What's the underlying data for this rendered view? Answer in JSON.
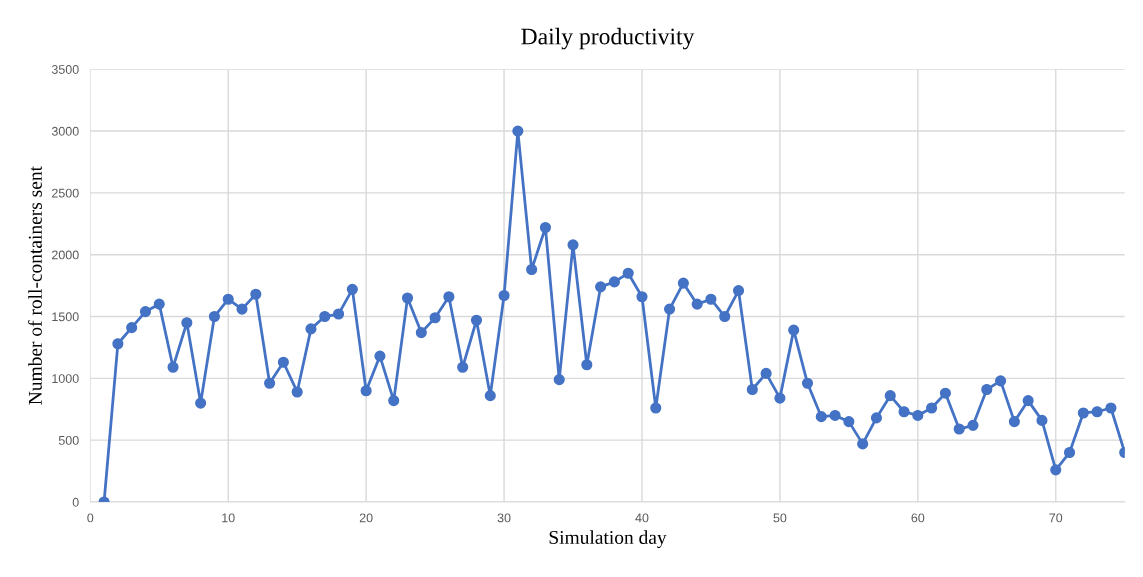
{
  "chart_data": {
    "type": "line",
    "title": "Daily productivity",
    "xlabel": "Simulation day",
    "ylabel": "Number of roll-containers sent",
    "x": [
      1,
      2,
      3,
      4,
      5,
      6,
      7,
      8,
      9,
      10,
      11,
      12,
      13,
      14,
      15,
      16,
      17,
      18,
      19,
      20,
      21,
      22,
      23,
      24,
      25,
      26,
      27,
      28,
      29,
      30,
      31,
      32,
      33,
      34,
      35,
      36,
      37,
      38,
      39,
      40,
      41,
      42,
      43,
      44,
      45,
      46,
      47,
      48,
      49,
      50,
      51,
      52,
      53,
      54,
      55,
      56,
      57,
      58,
      59,
      60,
      61,
      62,
      63,
      64,
      65,
      66,
      67,
      68,
      69,
      70,
      71,
      72,
      73,
      74,
      75
    ],
    "series": [
      {
        "color": "#4472c4",
        "values": [
          0,
          1280,
          1410,
          1540,
          1600,
          1090,
          1450,
          800,
          1500,
          1640,
          1560,
          1680,
          960,
          1130,
          890,
          1400,
          1500,
          1520,
          1720,
          900,
          1180,
          820,
          1650,
          1370,
          1490,
          1660,
          1090,
          1470,
          860,
          1670,
          3000,
          1880,
          2220,
          990,
          2080,
          1110,
          1740,
          1780,
          1850,
          1660,
          760,
          1560,
          1770,
          1600,
          1640,
          1500,
          1710,
          910,
          1040,
          840,
          1390,
          960,
          690,
          700,
          650,
          470,
          680,
          860,
          730,
          700,
          760,
          880,
          590,
          620,
          910,
          980,
          650,
          820,
          660,
          260,
          400,
          720,
          730,
          760,
          400
        ]
      }
    ],
    "xlim": [
      0,
      75
    ],
    "xticks": [
      0,
      10,
      20,
      30,
      40,
      50,
      60,
      70
    ],
    "ylim": [
      0,
      3500
    ],
    "yticks": [
      0,
      500,
      1000,
      1500,
      2000,
      2500,
      3000,
      3500
    ],
    "grid": true,
    "marker": "circle",
    "line_style": "solid",
    "legend": false
  }
}
